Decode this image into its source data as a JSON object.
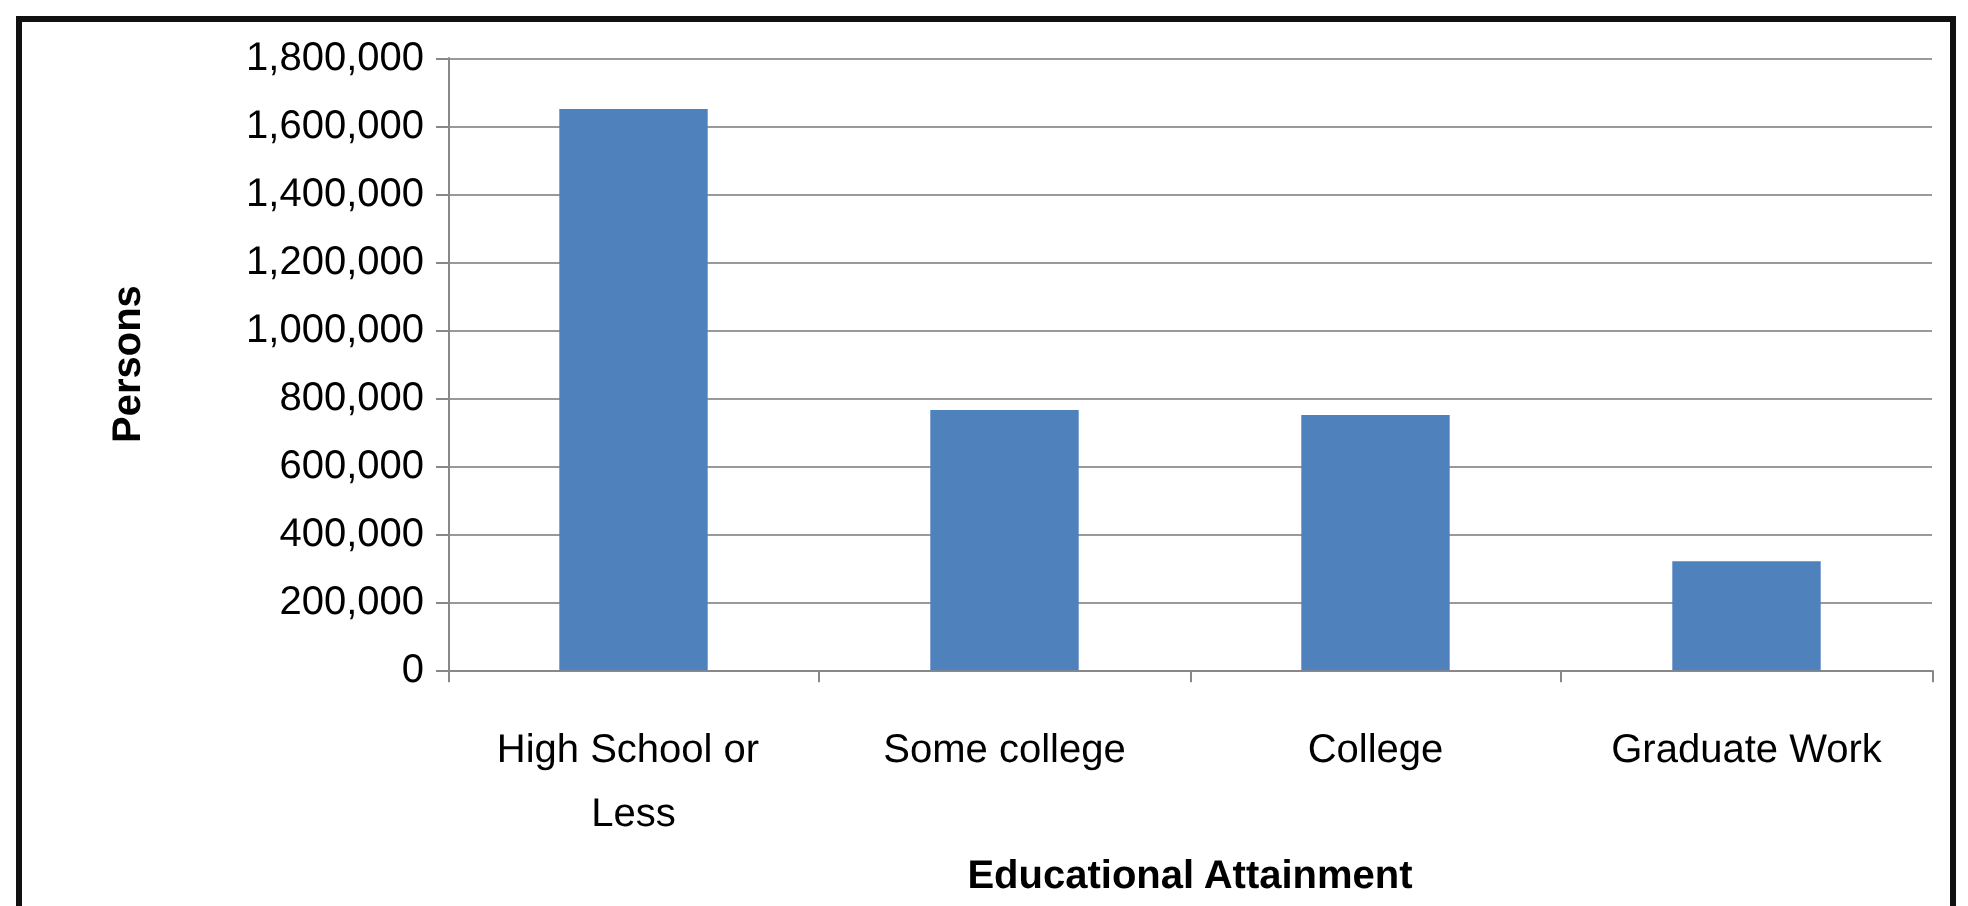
{
  "chart_data": {
    "type": "bar",
    "xlabel": "Educational Attainment",
    "ylabel": "Persons",
    "categories": [
      "High School or Less",
      "Some college",
      "College",
      "Graduate Work"
    ],
    "values": [
      1650000,
      765000,
      750000,
      320000
    ],
    "color": "#4f81bd",
    "ylim": [
      0,
      1800000
    ],
    "yticks": [
      {
        "value": 0,
        "label": "0"
      },
      {
        "value": 200000,
        "label": "200,000"
      },
      {
        "value": 400000,
        "label": "400,000"
      },
      {
        "value": 600000,
        "label": "600,000"
      },
      {
        "value": 800000,
        "label": "800,000"
      },
      {
        "value": 1000000,
        "label": "1,000,000"
      },
      {
        "value": 1200000,
        "label": "1,200,000"
      },
      {
        "value": 1400000,
        "label": "1,400,000"
      },
      {
        "value": 1600000,
        "label": "1,600,000"
      },
      {
        "value": 1800000,
        "label": "1,800,000"
      }
    ],
    "grid": "y"
  }
}
